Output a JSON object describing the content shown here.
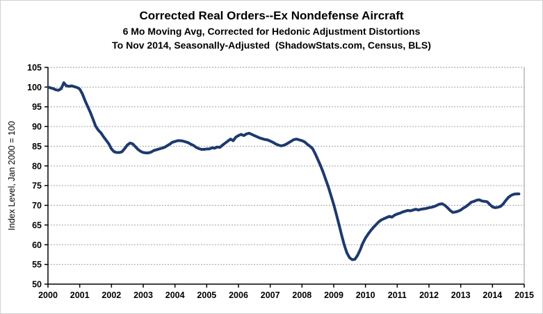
{
  "header": {
    "title": "Corrected Real Orders--Ex Nondefense Aircraft",
    "subtitle1": "6 Mo Moving Avg, Corrected for Hedonic Adjustment Distortions",
    "subtitle2": "To Nov 2014, Seasonally-Adjusted  (ShadowStats.com, Census, BLS)"
  },
  "chart_data": {
    "type": "line",
    "title": "Corrected Real Orders--Ex Nondefense Aircraft",
    "subtitle": [
      "6 Mo Moving Avg, Corrected for Hedonic Adjustment Distortions",
      "To Nov 2014, Seasonally-Adjusted  (ShadowStats.com, Census, BLS)"
    ],
    "xlabel": "",
    "ylabel": "Index Level, Jan 2000 = 100",
    "ylim": [
      50,
      105
    ],
    "y_ticks": [
      50,
      55,
      60,
      65,
      70,
      75,
      80,
      85,
      90,
      95,
      100,
      105
    ],
    "x_ticks": [
      2000,
      2001,
      2002,
      2003,
      2004,
      2005,
      2006,
      2007,
      2008,
      2009,
      2010,
      2011,
      2012,
      2013,
      2014,
      2015
    ],
    "grid": "horizontal-dotted",
    "legend": "none",
    "line_color": "#1d3a6d",
    "grid_color": "#a0a0a0",
    "axis_color": "#000000",
    "box_color": "#909090",
    "series": [
      {
        "name": "Corrected Real Orders, 6-Mo Moving Average",
        "frequency": "monthly",
        "start": "2000-01",
        "end": "2014-11",
        "values_by_year": {
          "2000": [
            100.0,
            99.8,
            99.6,
            99.3,
            99.2,
            99.6,
            101.1,
            100.3,
            100.2,
            100.3,
            100.1,
            99.9
          ],
          "2001": [
            99.5,
            98.3,
            96.6,
            95.1,
            93.6,
            91.9,
            90.1,
            89.1,
            88.4,
            87.4,
            86.5,
            85.6
          ],
          "2002": [
            84.3,
            83.6,
            83.4,
            83.4,
            83.6,
            84.4,
            85.3,
            85.8,
            85.6,
            84.9,
            84.2,
            83.7
          ],
          "2003": [
            83.4,
            83.3,
            83.3,
            83.5,
            83.9,
            84.1,
            84.3,
            84.5,
            84.7,
            85.1,
            85.5,
            86.0
          ],
          "2004": [
            86.2,
            86.4,
            86.4,
            86.3,
            86.1,
            85.9,
            85.5,
            85.2,
            84.7,
            84.4,
            84.2,
            84.2
          ],
          "2005": [
            84.3,
            84.3,
            84.6,
            84.5,
            84.8,
            84.7,
            85.3,
            85.8,
            86.3,
            86.8,
            86.4,
            87.3
          ],
          "2006": [
            87.7,
            88.0,
            87.7,
            88.1,
            88.3,
            88.0,
            87.7,
            87.4,
            87.1,
            86.9,
            86.7,
            86.6
          ],
          "2007": [
            86.3,
            86.0,
            85.6,
            85.3,
            85.1,
            85.2,
            85.5,
            85.9,
            86.3,
            86.7,
            86.8,
            86.6
          ],
          "2008": [
            86.4,
            86.1,
            85.5,
            85.0,
            84.4,
            83.1,
            81.6,
            80.1,
            78.4,
            76.5,
            74.6,
            72.4
          ],
          "2009": [
            70.2,
            67.7,
            65.1,
            62.4,
            59.9,
            57.9,
            56.7,
            56.2,
            56.3,
            57.3,
            58.7,
            60.4
          ],
          "2010": [
            61.7,
            62.7,
            63.6,
            64.4,
            65.1,
            65.8,
            66.3,
            66.6,
            66.9,
            67.2,
            67.0,
            67.5
          ],
          "2011": [
            67.8,
            68.0,
            68.3,
            68.5,
            68.7,
            68.6,
            68.8,
            69.0,
            68.8,
            69.0,
            69.1,
            69.2
          ],
          "2012": [
            69.4,
            69.5,
            69.7,
            70.0,
            70.3,
            70.4,
            70.0,
            69.4,
            68.7,
            68.2,
            68.3,
            68.5
          ],
          "2013": [
            68.8,
            69.3,
            69.7,
            70.2,
            70.8,
            71.0,
            71.3,
            71.4,
            71.1,
            71.0,
            70.9,
            70.2
          ],
          "2014": [
            69.6,
            69.4,
            69.5,
            69.7,
            70.3,
            71.2,
            72.0,
            72.5,
            72.8,
            72.9,
            72.9
          ]
        }
      }
    ]
  }
}
